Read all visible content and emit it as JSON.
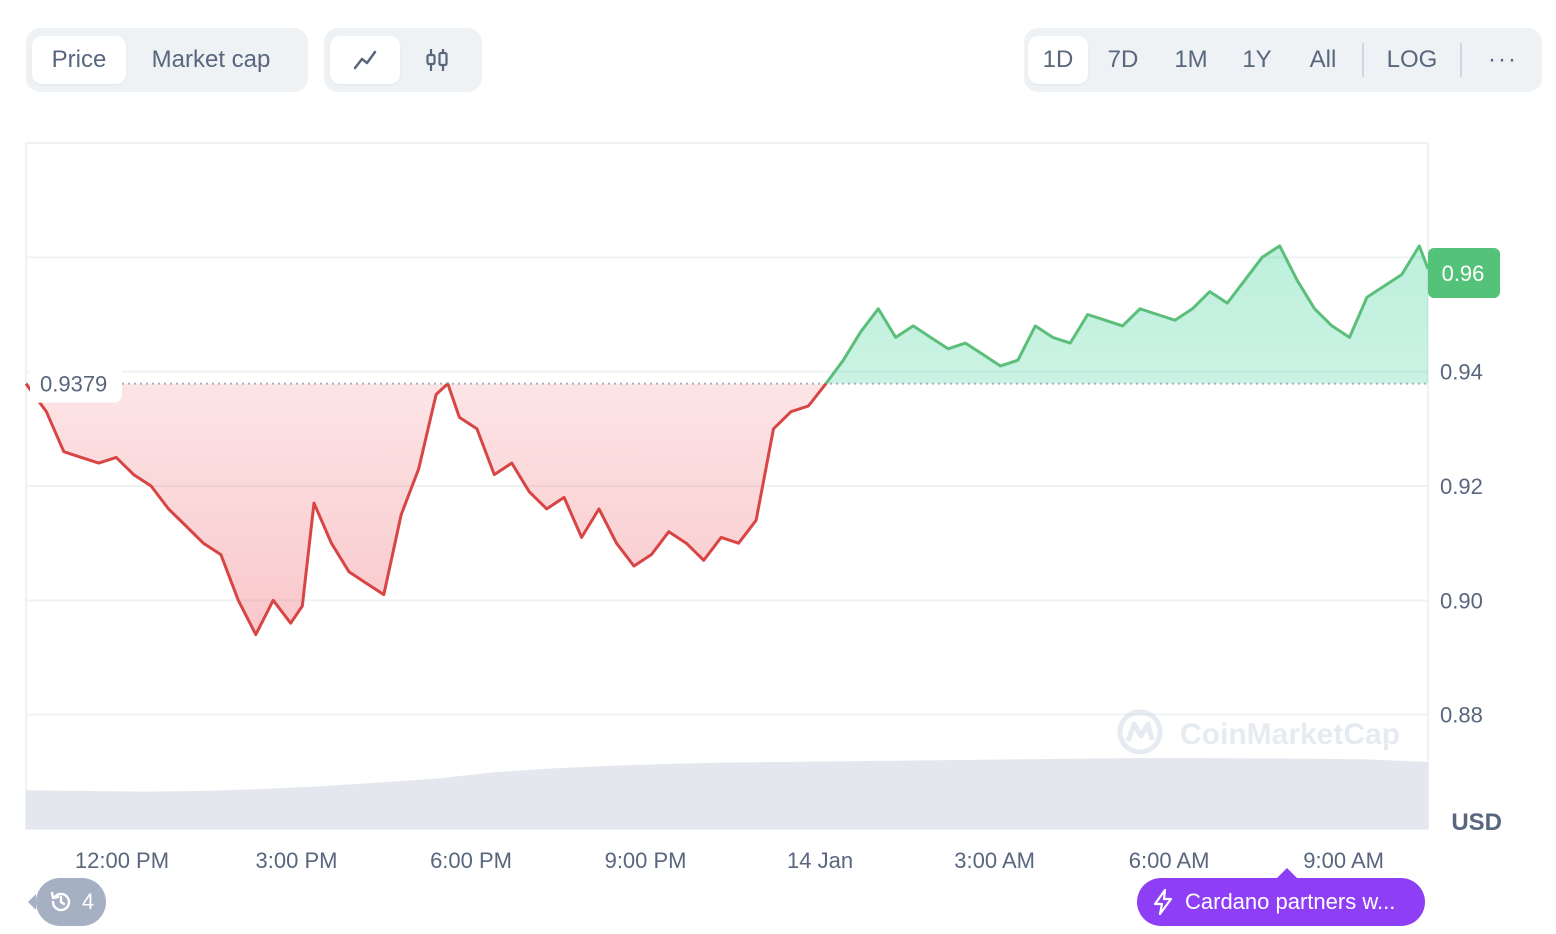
{
  "toolbar": {
    "metric_tabs": [
      "Price",
      "Market cap"
    ],
    "active_metric": "Price",
    "chart_types": [
      "line-chart-icon",
      "candlestick-icon"
    ],
    "ranges": [
      "1D",
      "7D",
      "1M",
      "1Y",
      "All"
    ],
    "active_range": "1D",
    "scale_label": "LOG",
    "more_label": "···"
  },
  "colors": {
    "up": "#16c784",
    "up_line": "#5bbf7a",
    "down": "#ea3943",
    "down_line": "#d84545",
    "grid": "#eff2f5",
    "volume": "#e4e8ee",
    "badge": "#55c27a",
    "news_pill": "#8e3ff5"
  },
  "news": {
    "icon": "lightning-icon",
    "text": "Cardano partners w..."
  },
  "history": {
    "icon": "history-icon",
    "count": "4"
  },
  "watermark": "CoinMarketCap",
  "chart_data": {
    "type": "line",
    "ylabel": "USD",
    "ylim": [
      0.86,
      0.98
    ],
    "y_ticks": [
      "0.96",
      "0.94",
      "0.92",
      "0.90",
      "0.88"
    ],
    "x_ticks": [
      "12:00 PM",
      "3:00 PM",
      "6:00 PM",
      "9:00 PM",
      "14 Jan",
      "3:00 AM",
      "6:00 AM",
      "9:00 AM"
    ],
    "x_range_hours": [
      10.35,
      34.45
    ],
    "reference_price": "0.9379",
    "reference_value": 0.9379,
    "current_price_label": "0.96",
    "grid": true,
    "series": [
      {
        "x": [
          10.35,
          10.7,
          11.0,
          11.3,
          11.6,
          11.9,
          12.2,
          12.5,
          12.8,
          13.1,
          13.4,
          13.7,
          14.0,
          14.3,
          14.6,
          14.9,
          15.1,
          15.3,
          15.6,
          15.9,
          16.2,
          16.5,
          16.8,
          17.1,
          17.4,
          17.6,
          17.8,
          18.1,
          18.4,
          18.7,
          19.0,
          19.3,
          19.6,
          19.9,
          20.2,
          20.5,
          20.8,
          21.1,
          21.4,
          21.7,
          22.0,
          22.3,
          22.6,
          22.9,
          23.2,
          23.5,
          23.8,
          24.1,
          24.4,
          24.7,
          25.0,
          25.3,
          25.6,
          25.9,
          26.2,
          26.5,
          26.8,
          27.1,
          27.4,
          27.7,
          28.0,
          28.3,
          28.6,
          28.9,
          29.2,
          29.5,
          29.8,
          30.1,
          30.4,
          30.7,
          31.0,
          31.3,
          31.6,
          31.9,
          32.2,
          32.5,
          32.8,
          33.1,
          33.4,
          33.7,
          34.0,
          34.3,
          34.45
        ],
        "values": [
          0.9379,
          0.933,
          0.926,
          0.925,
          0.924,
          0.925,
          0.922,
          0.92,
          0.916,
          0.913,
          0.91,
          0.908,
          0.9,
          0.894,
          0.9,
          0.896,
          0.899,
          0.917,
          0.91,
          0.905,
          0.903,
          0.901,
          0.915,
          0.923,
          0.936,
          0.9379,
          0.932,
          0.93,
          0.922,
          0.924,
          0.919,
          0.916,
          0.918,
          0.911,
          0.916,
          0.91,
          0.906,
          0.908,
          0.912,
          0.91,
          0.907,
          0.911,
          0.91,
          0.914,
          0.93,
          0.933,
          0.934,
          0.9379,
          0.942,
          0.947,
          0.951,
          0.946,
          0.948,
          0.946,
          0.944,
          0.945,
          0.943,
          0.941,
          0.942,
          0.948,
          0.946,
          0.945,
          0.95,
          0.949,
          0.948,
          0.951,
          0.95,
          0.949,
          0.951,
          0.954,
          0.952,
          0.956,
          0.96,
          0.962,
          0.956,
          0.951,
          0.948,
          0.946,
          0.953,
          0.955,
          0.957,
          0.962,
          0.958
        ]
      }
    ],
    "volume_profile": [
      0.3,
      0.295,
      0.29,
      0.295,
      0.31,
      0.33,
      0.36,
      0.39,
      0.44,
      0.47,
      0.49,
      0.505,
      0.515,
      0.52,
      0.525,
      0.53,
      0.535,
      0.54,
      0.545,
      0.55,
      0.55,
      0.548,
      0.545,
      0.54,
      0.52
    ]
  }
}
